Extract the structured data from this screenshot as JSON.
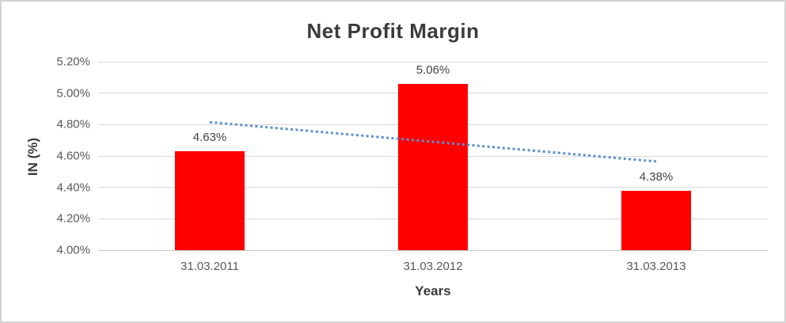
{
  "chart_data": {
    "type": "bar",
    "title": "Net Profit Margin",
    "xlabel": "Years",
    "ylabel": "IN (%)",
    "categories": [
      "31.03.2011",
      "31.03.2012",
      "31.03.2013"
    ],
    "values": [
      4.63,
      5.06,
      4.38
    ],
    "data_labels": [
      "4.63%",
      "5.06%",
      "4.38%"
    ],
    "ylim": [
      4.0,
      5.2
    ],
    "ytick_labels_top_to_bottom": [
      "5.20%",
      "5.00%",
      "4.80%",
      "4.60%",
      "4.40%",
      "4.20%",
      "4.00%"
    ],
    "grid": true,
    "legend": "none",
    "bar_color": "#ff0000",
    "trendline": {
      "kind": "linear",
      "style": "dotted",
      "color": "#5b8fd1",
      "start_value": 4.815,
      "end_value": 4.565
    }
  }
}
